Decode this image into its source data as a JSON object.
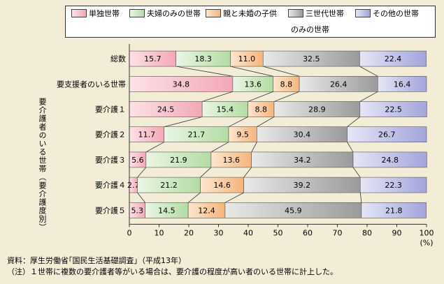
{
  "chart_data": {
    "type": "bar",
    "orientation": "horizontal",
    "stacked": true,
    "ylabel": "要介護者のいる世帯（要介護度別）",
    "x_unit": "(%)",
    "xlim": [
      0,
      100
    ],
    "x_ticks": [
      "0",
      "10",
      "20",
      "30",
      "40",
      "50",
      "60",
      "70",
      "80",
      "90",
      "100"
    ],
    "categories": [
      "総数",
      "要支援者のいる世帯",
      "要介護１",
      "要介護２",
      "要介護３",
      "要介護４",
      "要介護５"
    ],
    "series": [
      {
        "name": "単独世帯",
        "values": [
          15.7,
          34.8,
          24.5,
          11.7,
          5.6,
          2.7,
          5.3
        ]
      },
      {
        "name": "夫婦のみの世帯",
        "values": [
          18.3,
          13.6,
          15.4,
          21.7,
          21.9,
          21.2,
          14.5
        ]
      },
      {
        "name": "親と未婚の子供のみの世帯",
        "values": [
          11.0,
          8.8,
          8.8,
          9.5,
          13.6,
          14.6,
          12.4
        ]
      },
      {
        "name": "三世代世帯",
        "values": [
          32.5,
          26.4,
          28.9,
          30.4,
          34.2,
          39.2,
          45.9
        ]
      },
      {
        "name": "その他の世帯",
        "values": [
          22.4,
          16.4,
          22.5,
          26.7,
          24.8,
          22.3,
          21.8
        ]
      }
    ],
    "value_labels": [
      [
        "15.7",
        "18.3",
        "11.0",
        "32.5",
        "22.4"
      ],
      [
        "34.8",
        "13.6",
        "8.8",
        "26.4",
        "16.4"
      ],
      [
        "24.5",
        "15.4",
        "8.8",
        "28.9",
        "22.5"
      ],
      [
        "11.7",
        "21.7",
        "9.5",
        "30.4",
        "26.7"
      ],
      [
        "5.6",
        "21.9",
        "13.6",
        "34.2",
        "24.8"
      ],
      [
        "2.7",
        "21.2",
        "14.6",
        "39.2",
        "22.3"
      ],
      [
        "5.3",
        "14.5",
        "12.4",
        "45.9",
        "21.8"
      ]
    ],
    "grid": false,
    "legend_position": "top"
  },
  "legend": {
    "items": [
      {
        "label": "単独世帯"
      },
      {
        "label": "夫婦のみの世帯"
      },
      {
        "label": "親と未婚の子供"
      },
      {
        "label": "三世代世帯"
      },
      {
        "label": "その他の世帯"
      }
    ],
    "continuation": "のみの世帯"
  },
  "colors": {
    "single": [
      "#fde2e6",
      "#f3a8b6"
    ],
    "couple": [
      "#eaf6e4",
      "#b3dca3"
    ],
    "parent_child": [
      "#fde6cf",
      "#f6b47a"
    ],
    "three_gen": [
      "#e9e9e9",
      "#9a9a9a"
    ],
    "other": [
      "#e6e6f6",
      "#a2a4dc"
    ]
  },
  "notes": {
    "source": "資料：厚生労働省｢国民生活基礎調査｣（平成13年）",
    "note": "（注）１世帯に複数の要介護者等がいる場合は、要介護の程度が高い者のいる世帯に計上した。"
  }
}
